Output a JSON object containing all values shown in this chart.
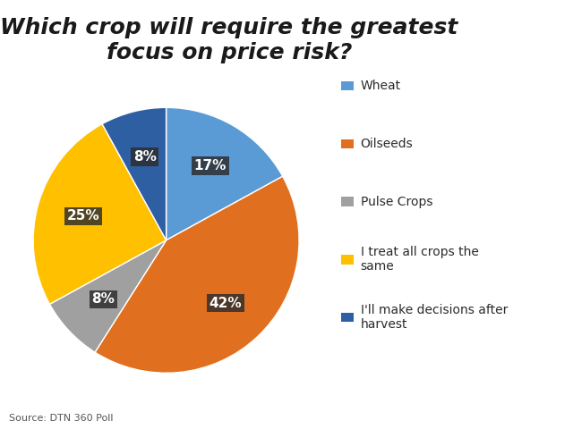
{
  "title": "Which crop will require the greatest\nfocus on price risk?",
  "legend_labels": [
    "Wheat",
    "Oilseeds",
    "Pulse Crops",
    "I treat all crops the\nsame",
    "I'll make decisions after\nharvest"
  ],
  "values": [
    17,
    42,
    8,
    25,
    8
  ],
  "colors": [
    "#5B9BD5",
    "#E07020",
    "#A0A0A0",
    "#FFC000",
    "#2E5FA3"
  ],
  "pct_labels": [
    "17%",
    "42%",
    "8%",
    "25%",
    "8%"
  ],
  "source_text": "Source: DTN 360 Poll",
  "background_color": "#FFFFFF",
  "title_fontsize": 18,
  "legend_fontsize": 10,
  "pct_fontsize": 11,
  "source_fontsize": 8
}
